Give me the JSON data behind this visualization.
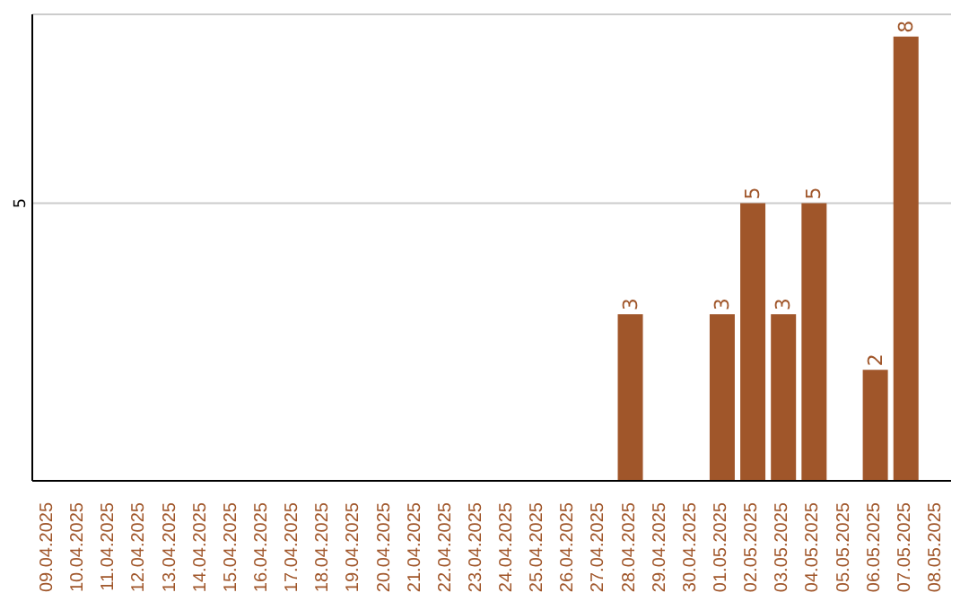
{
  "chart_data": {
    "type": "bar",
    "categories": [
      "09.04.2025",
      "10.04.2025",
      "11.04.2025",
      "12.04.2025",
      "13.04.2025",
      "14.04.2025",
      "15.04.2025",
      "16.04.2025",
      "17.04.2025",
      "18.04.2025",
      "19.04.2025",
      "20.04.2025",
      "21.04.2025",
      "22.04.2025",
      "23.04.2025",
      "24.04.2025",
      "25.04.2025",
      "26.04.2025",
      "27.04.2025",
      "28.04.2025",
      "29.04.2025",
      "30.04.2025",
      "01.05.2025",
      "02.05.2025",
      "03.05.2025",
      "04.05.2025",
      "05.05.2025",
      "06.05.2025",
      "07.05.2025",
      "08.05.2025"
    ],
    "values": [
      null,
      null,
      null,
      null,
      null,
      null,
      null,
      null,
      null,
      null,
      null,
      null,
      null,
      null,
      null,
      null,
      null,
      null,
      null,
      3,
      null,
      null,
      3,
      5,
      3,
      5,
      null,
      2,
      8,
      null
    ],
    "color": "#a0562a",
    "ylim": [
      0,
      8.4
    ],
    "yticks": [
      5
    ],
    "grid": "y",
    "data_labels": true
  }
}
